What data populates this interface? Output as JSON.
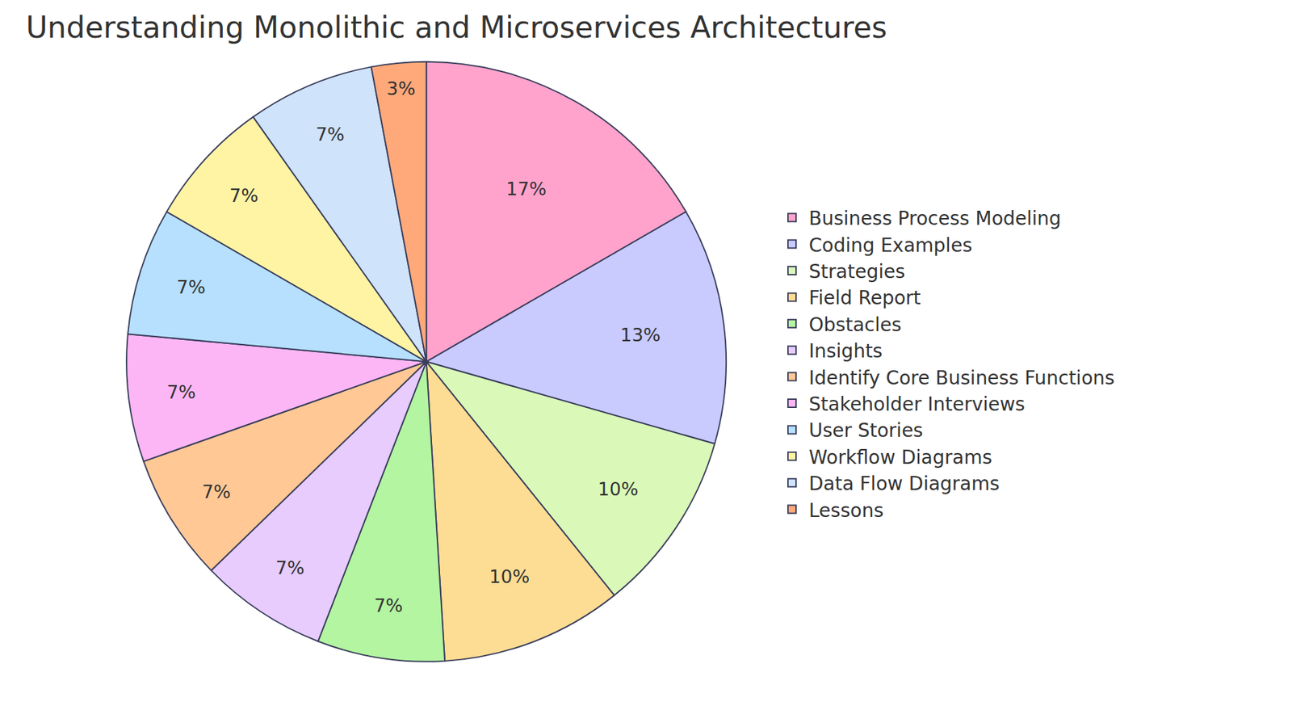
{
  "chart_data": {
    "type": "pie",
    "title": "Understanding Monolithic and Microservices Architectures",
    "categories": [
      "Business Process Modeling",
      "Coding Examples",
      "Strategies",
      "Field Report",
      "Obstacles",
      "Insights",
      "Identify Core Business Functions",
      "Stakeholder Interviews",
      "User Stories",
      "Workflow Diagrams",
      "Data Flow Diagrams",
      "Lessons"
    ],
    "values": [
      17,
      13,
      10,
      10,
      7,
      7,
      7,
      7,
      7,
      7,
      7,
      3
    ],
    "value_labels": [
      "17%",
      "13%",
      "10%",
      "10%",
      "7%",
      "7%",
      "7%",
      "7%",
      "7%",
      "7%",
      "7%",
      "3%"
    ],
    "colors": [
      "#FFA3CD",
      "#C9CBFF",
      "#DAF9B8",
      "#FDDD93",
      "#B3F5A1",
      "#E7CCFD",
      "#FFC895",
      "#FDB6F5",
      "#B6E0FE",
      "#FEF4A4",
      "#CFE3FB",
      "#FFA97A"
    ],
    "data_labels": true,
    "legend": "right"
  }
}
